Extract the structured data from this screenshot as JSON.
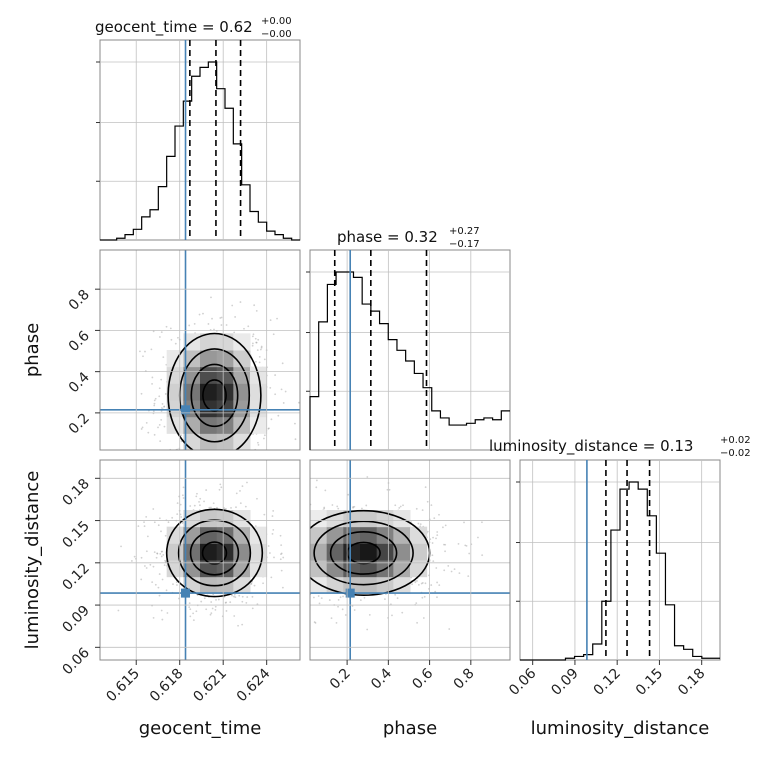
{
  "chart_data": {
    "type": "corner",
    "parameters": [
      "geocent_time",
      "phase",
      "luminosity_distance"
    ],
    "colors": {
      "truth": "#4682b4",
      "hist": "#000000",
      "grid": "#c0c0c0",
      "points": "#9a9a9a"
    },
    "titles": [
      {
        "name": "geocent_time",
        "median": "0.62",
        "plus": "+0.00",
        "minus": "−0.00"
      },
      {
        "name": "phase",
        "median": "0.32",
        "plus": "+0.27",
        "minus": "−0.17"
      },
      {
        "name": "luminosity_distance",
        "median": "0.13",
        "plus": "+0.02",
        "minus": "−0.02"
      }
    ],
    "ranges": {
      "geocent_time": [
        0.6125,
        0.6263
      ],
      "phase": [
        0.02,
        0.99
      ],
      "luminosity_distance": [
        0.051,
        0.193
      ]
    },
    "ticks": {
      "geocent_time": [
        "0.615",
        "0.618",
        "0.621",
        "0.624"
      ],
      "phase": [
        "0.2",
        "0.4",
        "0.6",
        "0.8"
      ],
      "luminosity_distance": [
        "0.06",
        "0.09",
        "0.12",
        "0.15",
        "0.18"
      ]
    },
    "axis_labels": {
      "geocent_time": "geocent_time",
      "phase": "phase",
      "luminosity_distance": "luminosity_distance"
    },
    "truths": {
      "geocent_time": 0.6184,
      "phase": 0.215,
      "luminosity_distance": 0.0985
    },
    "quantiles": {
      "geocent_time": [
        0.6187,
        0.6205,
        0.6222
      ],
      "phase": [
        0.14,
        0.315,
        0.585
      ],
      "luminosity_distance": [
        0.112,
        0.127,
        0.143
      ]
    },
    "histograms": {
      "geocent_time": {
        "x_start": 0.6125,
        "x_end": 0.6263,
        "counts": [
          0.0,
          0.0,
          0.01,
          0.03,
          0.06,
          0.13,
          0.17,
          0.3,
          0.47,
          0.64,
          0.78,
          0.92,
          0.97,
          1.0,
          0.85,
          0.74,
          0.54,
          0.31,
          0.16,
          0.1,
          0.05,
          0.03,
          0.01,
          0.0
        ]
      },
      "phase": {
        "x_start": 0.02,
        "x_end": 0.99,
        "counts": [
          0.3,
          0.72,
          0.93,
          1.0,
          1.0,
          0.97,
          0.82,
          0.78,
          0.71,
          0.62,
          0.56,
          0.5,
          0.43,
          0.35,
          0.22,
          0.18,
          0.14,
          0.14,
          0.15,
          0.17,
          0.18,
          0.17,
          0.22
        ]
      },
      "luminosity_distance": {
        "x_start": 0.051,
        "x_end": 0.193,
        "counts": [
          0.0,
          0.0,
          0.0,
          0.0,
          0.0,
          0.01,
          0.02,
          0.03,
          0.09,
          0.33,
          0.73,
          0.96,
          1.0,
          0.96,
          0.81,
          0.6,
          0.31,
          0.08,
          0.06,
          0.02,
          0.01,
          0.01
        ]
      }
    },
    "joint": [
      {
        "x": "geocent_time",
        "y": "phase",
        "center": [
          0.6204,
          0.285
        ],
        "spread": [
          0.0016,
          0.15
        ]
      },
      {
        "x": "geocent_time",
        "y": "luminosity_distance",
        "center": [
          0.6204,
          0.127
        ],
        "spread": [
          0.00165,
          0.0155
        ]
      },
      {
        "x": "phase",
        "y": "luminosity_distance",
        "center": [
          0.28,
          0.127
        ],
        "spread": [
          0.16,
          0.015
        ]
      }
    ]
  }
}
